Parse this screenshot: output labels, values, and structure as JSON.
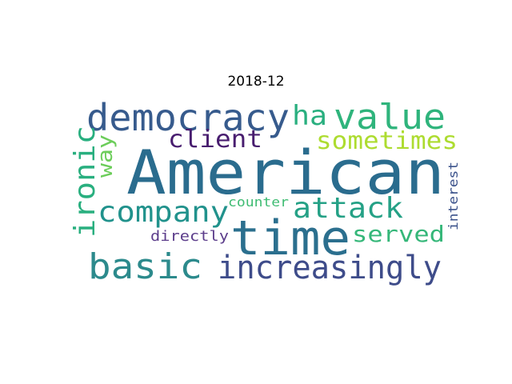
{
  "chart_data": {
    "type": "wordcloud",
    "title": "2018-12",
    "words": [
      {
        "text": "American",
        "color": "#2a6c8e"
      },
      {
        "text": "time",
        "color": "#2b6f8e"
      },
      {
        "text": "democracy",
        "color": "#375b8d"
      },
      {
        "text": "value",
        "color": "#2fb47c"
      },
      {
        "text": "basic",
        "color": "#2c8a8c"
      },
      {
        "text": "increasingly",
        "color": "#3e4c8a"
      },
      {
        "text": "company",
        "color": "#21928c"
      },
      {
        "text": "attack",
        "color": "#25a186"
      },
      {
        "text": "sometimes",
        "color": "#addc30"
      },
      {
        "text": "ironic",
        "color": "#29af7f"
      },
      {
        "text": "client",
        "color": "#481d6f"
      },
      {
        "text": "served",
        "color": "#35b779"
      },
      {
        "text": "ha",
        "color": "#29af7f"
      },
      {
        "text": "way",
        "color": "#6ccd5a"
      },
      {
        "text": "directly",
        "color": "#5c3d8b"
      },
      {
        "text": "counter",
        "color": "#3fbc73"
      },
      {
        "text": "interest",
        "color": "#3b528b"
      }
    ]
  }
}
